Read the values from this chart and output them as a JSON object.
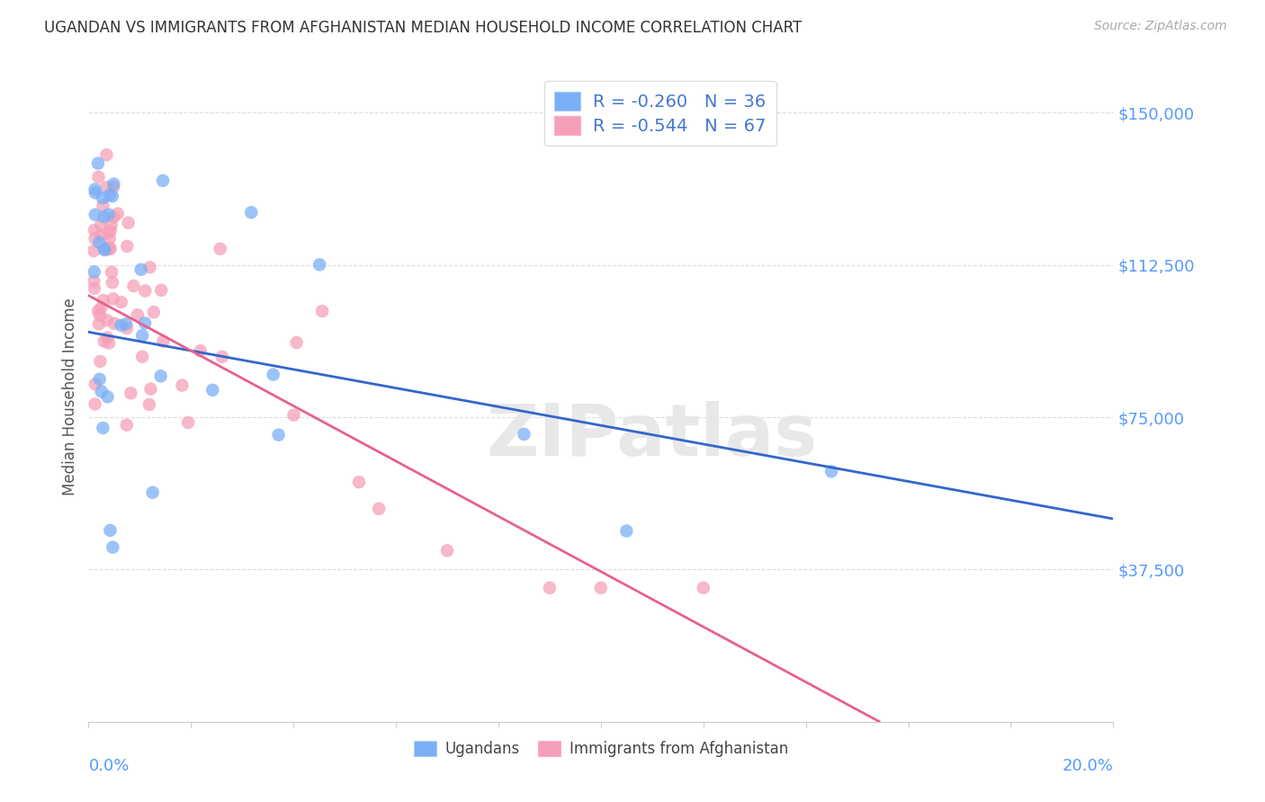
{
  "title": "UGANDAN VS IMMIGRANTS FROM AFGHANISTAN MEDIAN HOUSEHOLD INCOME CORRELATION CHART",
  "source": "Source: ZipAtlas.com",
  "ylabel": "Median Household Income",
  "yticks": [
    0,
    37500,
    75000,
    112500,
    150000
  ],
  "ytick_labels": [
    "",
    "$37,500",
    "$75,000",
    "$112,500",
    "$150,000"
  ],
  "xlim": [
    0.0,
    0.2
  ],
  "ylim": [
    0,
    160000
  ],
  "watermark": "ZIPatlas",
  "blue_label": "R = -0.260   N = 36",
  "pink_label": "R = -0.544   N = 67",
  "bottom_blue_label": "Ugandans",
  "bottom_pink_label": "Immigrants from Afghanistan",
  "blue_color": "#7baff5",
  "pink_color": "#f5a0b8",
  "blue_line_color": "#3366cc",
  "pink_line_color": "#e86090",
  "blue_R": -0.26,
  "blue_N": 36,
  "pink_R": -0.544,
  "pink_N": 67,
  "blue_line_intercept": 96000,
  "blue_line_slope": -230000,
  "pink_line_intercept": 105000,
  "pink_line_slope": -680000,
  "background_color": "#ffffff",
  "grid_color": "#dddddd",
  "title_color": "#333333",
  "axis_label_color": "#555555",
  "right_tick_color": "#5599ff",
  "source_color": "#aaaaaa",
  "legend_text_color": "#4477cc",
  "legend_number_color": "#cc3344"
}
